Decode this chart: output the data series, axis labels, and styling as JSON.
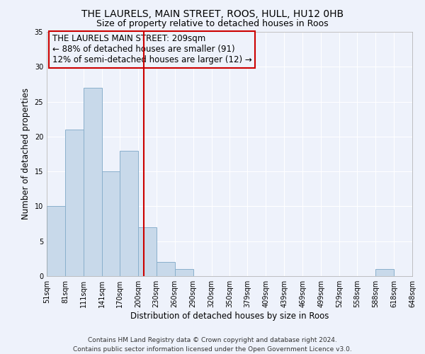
{
  "title": "THE LAURELS, MAIN STREET, ROOS, HULL, HU12 0HB",
  "subtitle": "Size of property relative to detached houses in Roos",
  "xlabel": "Distribution of detached houses by size in Roos",
  "ylabel": "Number of detached properties",
  "bar_color": "#c8d9ea",
  "bar_edgecolor": "#8ab0cc",
  "background_color": "#eef2fb",
  "grid_color": "#ffffff",
  "vline_x": 209,
  "vline_color": "#cc0000",
  "annotation_text": "THE LAURELS MAIN STREET: 209sqm\n← 88% of detached houses are smaller (91)\n12% of semi-detached houses are larger (12) →",
  "annotation_box_edgecolor": "#cc0000",
  "bin_edges": [
    51,
    81,
    111,
    141,
    170,
    200,
    230,
    260,
    290,
    320,
    350,
    379,
    409,
    439,
    469,
    499,
    529,
    558,
    588,
    618,
    648
  ],
  "bar_heights": [
    10,
    21,
    27,
    15,
    18,
    7,
    2,
    1,
    0,
    0,
    0,
    0,
    0,
    0,
    0,
    0,
    0,
    0,
    1,
    0
  ],
  "ylim": [
    0,
    35
  ],
  "yticks": [
    0,
    5,
    10,
    15,
    20,
    25,
    30,
    35
  ],
  "footer_text": "Contains HM Land Registry data © Crown copyright and database right 2024.\nContains public sector information licensed under the Open Government Licence v3.0.",
  "title_fontsize": 10,
  "subtitle_fontsize": 9,
  "axis_label_fontsize": 8.5,
  "tick_fontsize": 7,
  "annotation_fontsize": 8.5,
  "footer_fontsize": 6.5
}
